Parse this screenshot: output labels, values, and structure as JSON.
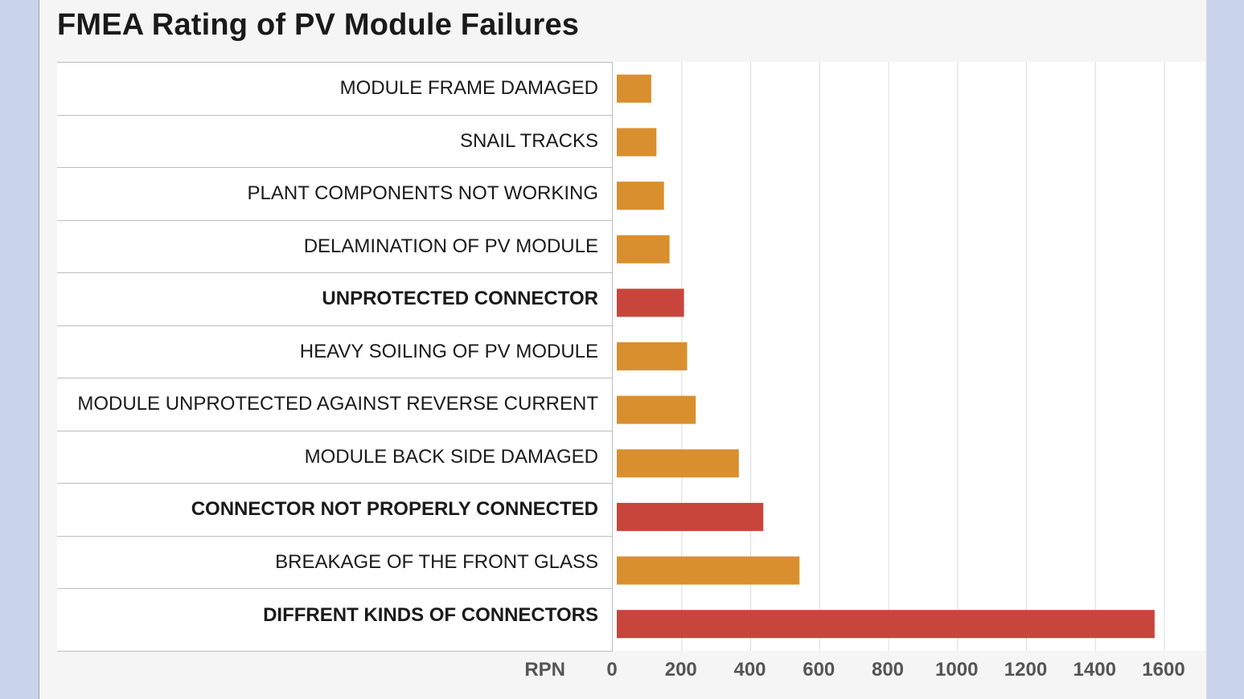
{
  "title": "FMEA Rating of PV Module Failures",
  "chart_data": {
    "type": "bar",
    "orientation": "horizontal",
    "title": "FMEA Rating of PV Module Failures",
    "xlabel": "RPN",
    "xlim": [
      0,
      1600
    ],
    "xticks": [
      0,
      200,
      400,
      600,
      800,
      1000,
      1200,
      1400,
      1600
    ],
    "grid": "vertical",
    "categories": [
      "MODULE FRAME DAMAGED",
      "SNAIL TRACKS",
      "PLANT COMPONENTS NOT WORKING",
      "DELAMINATION OF PV MODULE",
      "UNPROTECTED CONNECTOR",
      "HEAVY SOILING OF PV MODULE",
      "MODULE UNPROTECTED AGAINST REVERSE CURRENT",
      "MODULE BACK SIDE DAMAGED",
      "CONNECTOR NOT PROPERLY CONNECTED",
      "BREAKAGE OF THE FRONT GLASS",
      "DIFFRENT KINDS OF CONNECTORS"
    ],
    "values": [
      100,
      115,
      137,
      153,
      195,
      204,
      229,
      354,
      425,
      530,
      1560
    ],
    "highlighted": [
      false,
      false,
      false,
      false,
      true,
      false,
      false,
      false,
      true,
      false,
      true
    ],
    "colors": {
      "normal": "#d98f2e",
      "highlight": "#c8453c"
    }
  }
}
